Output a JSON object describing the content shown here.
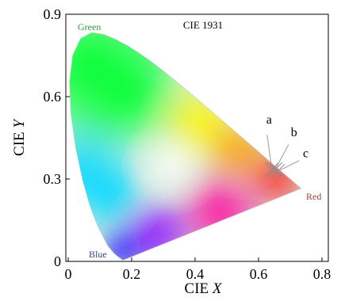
{
  "chart_data": {
    "type": "scatter",
    "title": "CIE 1931",
    "xlabel_prefix": "CIE ",
    "xlabel_var": "X",
    "ylabel_prefix": "CIE ",
    "ylabel_var": "Y",
    "xlim": [
      0,
      0.8
    ],
    "ylim": [
      0,
      0.9
    ],
    "xticks": [
      0,
      0.2,
      0.4,
      0.6,
      0.8
    ],
    "xtick_labels": [
      "0",
      "0.2",
      "0.4",
      "0.6",
      "0.8"
    ],
    "yticks": [
      0,
      0.3,
      0.6,
      0.9
    ],
    "ytick_labels": [
      "0",
      "0.3",
      "0.6",
      "0.9"
    ],
    "grid": false,
    "region_labels": {
      "green": "Green",
      "red": "Red",
      "blue": "Blue"
    },
    "region_label_colors": {
      "green": "#2e9e3a",
      "red": "#a83a40",
      "blue": "#3a3f8f"
    },
    "series": [
      {
        "label": "a",
        "x": 0.642,
        "y": 0.335
      },
      {
        "label": "b",
        "x": 0.652,
        "y": 0.334
      },
      {
        "label": "c",
        "x": 0.66,
        "y": 0.328
      }
    ],
    "spectral_locus": [
      [
        0.1741,
        0.005
      ],
      [
        0.1738,
        0.0049
      ],
      [
        0.1733,
        0.0048
      ],
      [
        0.1726,
        0.0048
      ],
      [
        0.1714,
        0.0051
      ],
      [
        0.1689,
        0.0069
      ],
      [
        0.1644,
        0.0109
      ],
      [
        0.1566,
        0.0177
      ],
      [
        0.144,
        0.0297
      ],
      [
        0.1241,
        0.0578
      ],
      [
        0.0913,
        0.1327
      ],
      [
        0.0687,
        0.2007
      ],
      [
        0.0454,
        0.295
      ],
      [
        0.0235,
        0.4127
      ],
      [
        0.0082,
        0.5384
      ],
      [
        0.0039,
        0.6548
      ],
      [
        0.0139,
        0.7502
      ],
      [
        0.0389,
        0.812
      ],
      [
        0.0743,
        0.8338
      ],
      [
        0.1142,
        0.8262
      ],
      [
        0.1547,
        0.8059
      ],
      [
        0.1929,
        0.7816
      ],
      [
        0.2296,
        0.7543
      ],
      [
        0.2658,
        0.7243
      ],
      [
        0.3016,
        0.6923
      ],
      [
        0.3373,
        0.6589
      ],
      [
        0.3731,
        0.6245
      ],
      [
        0.4087,
        0.5896
      ],
      [
        0.4441,
        0.5547
      ],
      [
        0.4788,
        0.5202
      ],
      [
        0.5125,
        0.4866
      ],
      [
        0.5448,
        0.4544
      ],
      [
        0.5752,
        0.4242
      ],
      [
        0.6029,
        0.3965
      ],
      [
        0.627,
        0.3725
      ],
      [
        0.6482,
        0.3514
      ],
      [
        0.6658,
        0.334
      ],
      [
        0.6801,
        0.3197
      ],
      [
        0.6915,
        0.3083
      ],
      [
        0.7006,
        0.2993
      ],
      [
        0.7079,
        0.292
      ],
      [
        0.714,
        0.2859
      ],
      [
        0.719,
        0.2809
      ],
      [
        0.723,
        0.277
      ],
      [
        0.726,
        0.274
      ],
      [
        0.7283,
        0.2717
      ],
      [
        0.73,
        0.27
      ],
      [
        0.7311,
        0.2689
      ],
      [
        0.732,
        0.268
      ],
      [
        0.7334,
        0.2666
      ],
      [
        0.7347,
        0.2653
      ]
    ]
  }
}
